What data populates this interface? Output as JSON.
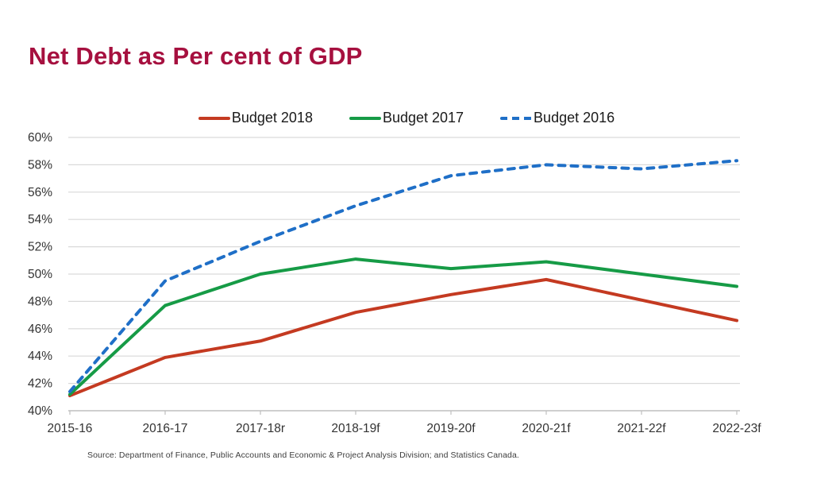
{
  "title": "Net Debt as Per cent of GDP",
  "source_note": "Source: Department of Finance, Public Accounts and Economic & Project Analysis Division; and Statistics Canada.",
  "colors": {
    "title": "#A6103F",
    "budget_2018": "#C43A21",
    "budget_2017": "#169B46",
    "budget_2016": "#1F6FC7",
    "gridline": "#D9D9D9",
    "axis_line": "#BFBFBF",
    "axis_text": "#333333"
  },
  "chart_data": {
    "type": "line",
    "title": "Net Debt as Per cent of GDP",
    "xlabel": "",
    "ylabel": "",
    "ylim": [
      40,
      60
    ],
    "ytick_step": 2,
    "ytick_format": "percent",
    "grid": true,
    "legend_position": "top",
    "categories": [
      "2015-16",
      "2016-17",
      "2017-18r",
      "2018-19f",
      "2019-20f",
      "2020-21f",
      "2021-22f",
      "2022-23f"
    ],
    "series": [
      {
        "name": "Budget 2018",
        "color_key": "budget_2018",
        "style": "solid",
        "values": [
          41.1,
          43.9,
          45.1,
          47.2,
          48.5,
          49.6,
          48.1,
          46.6
        ]
      },
      {
        "name": "Budget 2017",
        "color_key": "budget_2017",
        "style": "solid",
        "values": [
          41.2,
          47.7,
          50.0,
          51.1,
          50.4,
          50.9,
          50.0,
          49.1
        ]
      },
      {
        "name": "Budget 2016",
        "color_key": "budget_2016",
        "style": "dashed",
        "values": [
          41.4,
          49.5,
          52.4,
          55.0,
          57.2,
          58.0,
          57.7,
          58.3
        ]
      }
    ]
  }
}
